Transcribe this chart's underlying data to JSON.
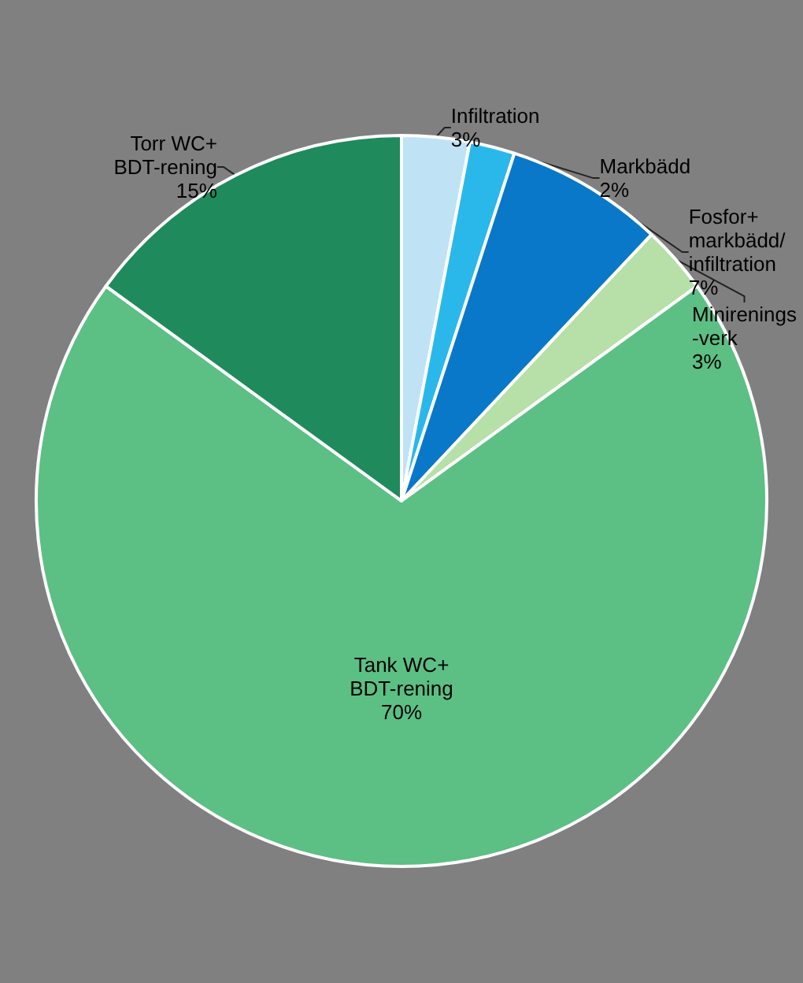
{
  "chart_data": {
    "type": "pie",
    "categories": [
      "Infiltration",
      "Markbädd",
      "Fosfor+\nmarkbädd/\ninfiltration",
      "Minirenings\n-verk",
      "Tank WC+\nBDT-rening",
      "Torr WC+\nBDT-rening"
    ],
    "values": [
      3,
      2,
      7,
      3,
      70,
      15
    ],
    "value_labels": [
      "3%",
      "2%",
      "7%",
      "3%",
      "70%",
      "15%"
    ],
    "colors": [
      "#bfe3f5",
      "#2ab8ea",
      "#0a78c8",
      "#b7dfa8",
      "#5cbf84",
      "#1f8a5c"
    ],
    "legend": false
  }
}
